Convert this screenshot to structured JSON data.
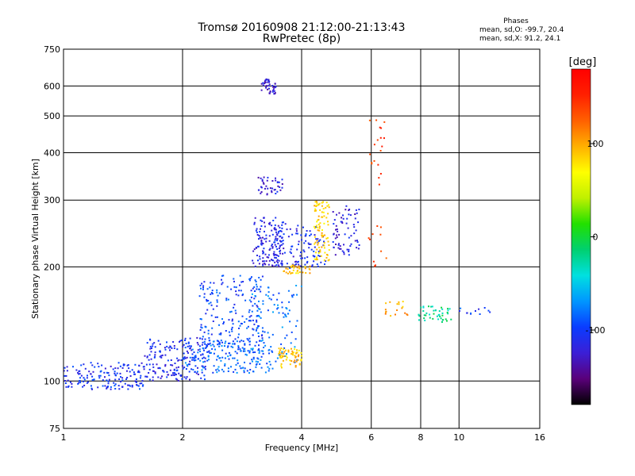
{
  "header": {
    "title": "Tromsø 20160908 21:12:00-21:13:43",
    "subtitle": "RwPretec (8p)"
  },
  "phase_stats": {
    "heading": "Phases",
    "line_o": "mean, sd,O: -99.7, 20.4",
    "line_x": "mean, sd,X:  91.2, 24.1"
  },
  "colorbar": {
    "label": "[deg]",
    "ticks": [
      {
        "value": 100,
        "label": "100"
      },
      {
        "value": 0,
        "label": "0"
      },
      {
        "value": -100,
        "label": "-100"
      }
    ],
    "range": [
      -180,
      180
    ],
    "colors": [
      "#000000",
      "#5a007a",
      "#3b1fd6",
      "#0a3cff",
      "#0096ff",
      "#00e0e0",
      "#00d070",
      "#22e000",
      "#bff000",
      "#ffff00",
      "#ffb000",
      "#ff6000",
      "#ff2000",
      "#ff0000"
    ]
  },
  "chart_data": {
    "type": "scatter",
    "xlabel": "Frequency [MHz]",
    "ylabel": "Stationary phase Virtual Height [km]",
    "xscale": "log",
    "yscale": "log",
    "xlim": [
      1,
      16
    ],
    "ylim": [
      75,
      750
    ],
    "xticks": [
      {
        "value": 1,
        "label": "1"
      },
      {
        "value": 2,
        "label": "2"
      },
      {
        "value": 4,
        "label": "4"
      },
      {
        "value": 6,
        "label": "6"
      },
      {
        "value": 8,
        "label": "8"
      },
      {
        "value": 10,
        "label": "10"
      },
      {
        "value": 16,
        "label": "16"
      }
    ],
    "yticks": [
      {
        "value": 75,
        "label": "75"
      },
      {
        "value": 100,
        "label": "100"
      },
      {
        "value": 200,
        "label": "200"
      },
      {
        "value": 300,
        "label": "300"
      },
      {
        "value": 400,
        "label": "400"
      },
      {
        "value": 500,
        "label": "500"
      },
      {
        "value": 600,
        "label": "600"
      },
      {
        "value": 750,
        "label": "750"
      }
    ],
    "grid": true,
    "clusters": [
      {
        "fmin": 1.0,
        "fmax": 1.6,
        "hmin": 95,
        "hmax": 112,
        "phase": -105,
        "count": 160
      },
      {
        "fmin": 1.6,
        "fmax": 2.3,
        "hmin": 100,
        "hmax": 130,
        "phase": -110,
        "count": 170
      },
      {
        "fmin": 2.0,
        "fmax": 3.4,
        "hmin": 105,
        "hmax": 128,
        "phase": -85,
        "count": 170
      },
      {
        "fmin": 2.2,
        "fmax": 3.2,
        "hmin": 118,
        "hmax": 190,
        "phase": -95,
        "count": 220
      },
      {
        "fmin": 3.0,
        "fmax": 4.0,
        "hmin": 110,
        "hmax": 180,
        "phase": -80,
        "count": 90
      },
      {
        "fmin": 3.5,
        "fmax": 4.0,
        "hmin": 108,
        "hmax": 122,
        "phase": 90,
        "count": 60
      },
      {
        "fmin": 3.0,
        "fmax": 3.6,
        "hmin": 200,
        "hmax": 270,
        "phase": -115,
        "count": 140
      },
      {
        "fmin": 3.4,
        "fmax": 4.6,
        "hmin": 198,
        "hmax": 260,
        "phase": -110,
        "count": 110
      },
      {
        "fmin": 3.1,
        "fmax": 3.6,
        "hmin": 310,
        "hmax": 345,
        "phase": -120,
        "count": 40
      },
      {
        "fmin": 3.15,
        "fmax": 3.45,
        "hmin": 570,
        "hmax": 625,
        "phase": -125,
        "count": 45
      },
      {
        "fmin": 3.6,
        "fmax": 4.2,
        "hmin": 192,
        "hmax": 202,
        "phase": 90,
        "count": 35
      },
      {
        "fmin": 4.3,
        "fmax": 4.7,
        "hmin": 205,
        "hmax": 300,
        "phase": 85,
        "count": 90
      },
      {
        "fmin": 4.8,
        "fmax": 5.6,
        "hmin": 215,
        "hmax": 290,
        "phase": -120,
        "count": 70
      },
      {
        "fmin": 5.9,
        "fmax": 6.6,
        "hmin": 200,
        "hmax": 500,
        "phase": 140,
        "count": 30
      },
      {
        "fmin": 6.5,
        "fmax": 7.5,
        "hmin": 148,
        "hmax": 162,
        "phase": 100,
        "count": 18
      },
      {
        "fmin": 7.8,
        "fmax": 9.6,
        "hmin": 143,
        "hmax": 158,
        "phase": -20,
        "count": 45
      },
      {
        "fmin": 10.0,
        "fmax": 12.0,
        "hmin": 150,
        "hmax": 156,
        "phase": -100,
        "count": 12
      }
    ]
  }
}
